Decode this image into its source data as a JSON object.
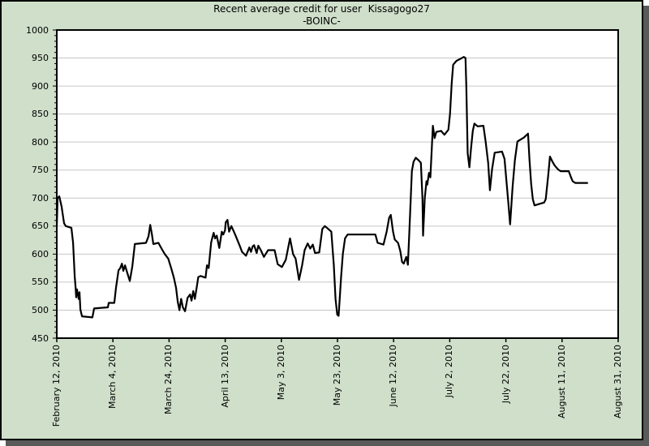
{
  "window": {
    "background": "#ffffff",
    "panel_bg": "#cfdfca",
    "panel_border": "#000000",
    "shadow_color": "#5a5a5a",
    "plot_bg": "#ffffff",
    "grid_color": "#c6c6c6",
    "line_color": "#000000"
  },
  "chart_data": {
    "type": "line",
    "title": "Recent average credit for user  Kissagogo27",
    "subtitle": "-BOINC-",
    "series_name": "Recent average credit",
    "xlabel": "",
    "ylabel": "",
    "grid": "horizontal",
    "legend": "none",
    "ylim": [
      450,
      1000
    ],
    "y_tick_step": 50,
    "y_minor_step": 10,
    "y_ticks": [
      "450",
      "500",
      "550",
      "600",
      "650",
      "700",
      "750",
      "800",
      "850",
      "900",
      "950",
      "1000"
    ],
    "x_range_days": [
      0,
      200
    ],
    "x_ticks": [
      {
        "day": 0,
        "label": "February 12, 2010"
      },
      {
        "day": 20,
        "label": "March 4, 2010"
      },
      {
        "day": 40,
        "label": "March 24, 2010"
      },
      {
        "day": 60,
        "label": "April 13, 2010"
      },
      {
        "day": 80,
        "label": "May 3, 2010"
      },
      {
        "day": 100,
        "label": "May 23, 2010"
      },
      {
        "day": 120,
        "label": "June 12, 2010"
      },
      {
        "day": 140,
        "label": "July 2, 2010"
      },
      {
        "day": 160,
        "label": "July 22, 2010"
      },
      {
        "day": 180,
        "label": "August 11, 2010"
      },
      {
        "day": 200,
        "label": "August 31, 2010"
      }
    ],
    "points": [
      [
        0,
        650
      ],
      [
        0.3,
        700
      ],
      [
        0.9,
        703
      ],
      [
        1.7,
        685
      ],
      [
        2.6,
        655
      ],
      [
        3.2,
        650
      ],
      [
        5.2,
        647
      ],
      [
        5.8,
        620
      ],
      [
        6.4,
        560
      ],
      [
        6.7,
        540
      ],
      [
        6.9,
        523
      ],
      [
        7.2,
        537
      ],
      [
        7.8,
        520
      ],
      [
        8.1,
        532
      ],
      [
        8.4,
        501
      ],
      [
        9,
        489
      ],
      [
        12.7,
        487
      ],
      [
        13.3,
        503
      ],
      [
        18.2,
        505
      ],
      [
        18.5,
        513
      ],
      [
        20.5,
        513
      ],
      [
        21.1,
        540
      ],
      [
        22,
        571
      ],
      [
        22.6,
        575
      ],
      [
        23.2,
        583
      ],
      [
        23.7,
        570
      ],
      [
        24.3,
        580
      ],
      [
        25.2,
        565
      ],
      [
        26,
        552
      ],
      [
        26.9,
        578
      ],
      [
        27.8,
        618
      ],
      [
        31.8,
        620
      ],
      [
        32.7,
        632
      ],
      [
        33.3,
        652
      ],
      [
        33.9,
        635
      ],
      [
        34.4,
        618
      ],
      [
        36.2,
        620
      ],
      [
        37.3,
        610
      ],
      [
        38.5,
        600
      ],
      [
        39.7,
        592
      ],
      [
        40.8,
        574
      ],
      [
        41.7,
        558
      ],
      [
        42.5,
        540
      ],
      [
        43.1,
        515
      ],
      [
        43.7,
        500
      ],
      [
        44.3,
        520
      ],
      [
        44.9,
        505
      ],
      [
        45.7,
        498
      ],
      [
        46.6,
        522
      ],
      [
        47.5,
        528
      ],
      [
        48,
        517
      ],
      [
        48.6,
        534
      ],
      [
        49.2,
        520
      ],
      [
        49.8,
        539
      ],
      [
        50.4,
        559
      ],
      [
        51.2,
        561
      ],
      [
        53,
        558
      ],
      [
        53.5,
        580
      ],
      [
        54.1,
        575
      ],
      [
        55,
        621
      ],
      [
        55.6,
        633
      ],
      [
        55.9,
        638
      ],
      [
        56.4,
        628
      ],
      [
        57,
        633
      ],
      [
        57.9,
        611
      ],
      [
        58.8,
        640
      ],
      [
        59.3,
        635
      ],
      [
        59.9,
        642
      ],
      [
        60.2,
        657
      ],
      [
        60.8,
        661
      ],
      [
        61.4,
        640
      ],
      [
        62.2,
        650
      ],
      [
        63.1,
        640
      ],
      [
        63.7,
        633
      ],
      [
        65.1,
        616
      ],
      [
        66,
        604
      ],
      [
        67.4,
        597
      ],
      [
        68.6,
        612
      ],
      [
        69.2,
        604
      ],
      [
        69.8,
        614
      ],
      [
        70.3,
        616
      ],
      [
        71.2,
        602
      ],
      [
        71.8,
        615
      ],
      [
        72.7,
        607
      ],
      [
        73.8,
        595
      ],
      [
        75.3,
        607
      ],
      [
        77.6,
        607
      ],
      [
        78.7,
        582
      ],
      [
        80.2,
        577
      ],
      [
        81.6,
        590
      ],
      [
        83.1,
        628
      ],
      [
        84.2,
        600
      ],
      [
        85.1,
        592
      ],
      [
        86.3,
        554
      ],
      [
        87.4,
        580
      ],
      [
        88.3,
        607
      ],
      [
        89.4,
        619
      ],
      [
        90.3,
        610
      ],
      [
        91.2,
        617
      ],
      [
        92,
        602
      ],
      [
        93.5,
        603
      ],
      [
        94.6,
        645
      ],
      [
        95.5,
        650
      ],
      [
        96.7,
        645
      ],
      [
        97.8,
        640
      ],
      [
        98.7,
        580
      ],
      [
        99.3,
        520
      ],
      [
        99.9,
        492
      ],
      [
        100.4,
        490
      ],
      [
        101.3,
        560
      ],
      [
        101.9,
        600
      ],
      [
        102.7,
        628
      ],
      [
        103.6,
        635
      ],
      [
        113.5,
        635
      ],
      [
        114.3,
        620
      ],
      [
        116.4,
        617
      ],
      [
        117.5,
        640
      ],
      [
        118.4,
        665
      ],
      [
        119,
        670
      ],
      [
        119.8,
        640
      ],
      [
        120.4,
        626
      ],
      [
        121.6,
        620
      ],
      [
        122.4,
        605
      ],
      [
        123,
        586
      ],
      [
        123.6,
        583
      ],
      [
        124.5,
        595
      ],
      [
        125.1,
        581
      ],
      [
        125.6,
        640
      ],
      [
        126.5,
        748
      ],
      [
        127.1,
        765
      ],
      [
        127.9,
        772
      ],
      [
        128.8,
        768
      ],
      [
        129.7,
        763
      ],
      [
        130.3,
        698
      ],
      [
        130.5,
        633
      ],
      [
        131.1,
        700
      ],
      [
        131.7,
        730
      ],
      [
        132,
        724
      ],
      [
        132.6,
        745
      ],
      [
        133.1,
        737
      ],
      [
        133.6,
        790
      ],
      [
        134,
        829
      ],
      [
        134.6,
        807
      ],
      [
        135.2,
        818
      ],
      [
        136.9,
        820
      ],
      [
        138.1,
        813
      ],
      [
        139.5,
        822
      ],
      [
        140.1,
        850
      ],
      [
        140.7,
        905
      ],
      [
        141.2,
        938
      ],
      [
        142.4,
        945
      ],
      [
        143.6,
        948
      ],
      [
        145,
        952
      ],
      [
        145.6,
        950
      ],
      [
        145.9,
        900
      ],
      [
        146.4,
        780
      ],
      [
        147,
        755
      ],
      [
        147.6,
        790
      ],
      [
        148.2,
        820
      ],
      [
        148.8,
        833
      ],
      [
        149.9,
        828
      ],
      [
        152,
        829
      ],
      [
        152.8,
        800
      ],
      [
        153.7,
        762
      ],
      [
        154.3,
        714
      ],
      [
        155.1,
        752
      ],
      [
        156,
        781
      ],
      [
        158.6,
        783
      ],
      [
        159.5,
        770
      ],
      [
        160.3,
        725
      ],
      [
        160.9,
        690
      ],
      [
        161.5,
        653
      ],
      [
        162.4,
        721
      ],
      [
        163.2,
        768
      ],
      [
        164.1,
        801
      ],
      [
        166.4,
        808
      ],
      [
        167.9,
        815
      ],
      [
        168.4,
        768
      ],
      [
        169,
        726
      ],
      [
        169.6,
        698
      ],
      [
        170.2,
        687
      ],
      [
        172.2,
        690
      ],
      [
        173.6,
        692
      ],
      [
        174.2,
        698
      ],
      [
        175.1,
        741
      ],
      [
        175.7,
        774
      ],
      [
        176.6,
        765
      ],
      [
        177.4,
        758
      ],
      [
        178.6,
        751
      ],
      [
        179.5,
        748
      ],
      [
        182.4,
        748
      ],
      [
        183.2,
        737
      ],
      [
        183.8,
        730
      ],
      [
        184.7,
        727
      ],
      [
        189,
        727
      ]
    ]
  }
}
